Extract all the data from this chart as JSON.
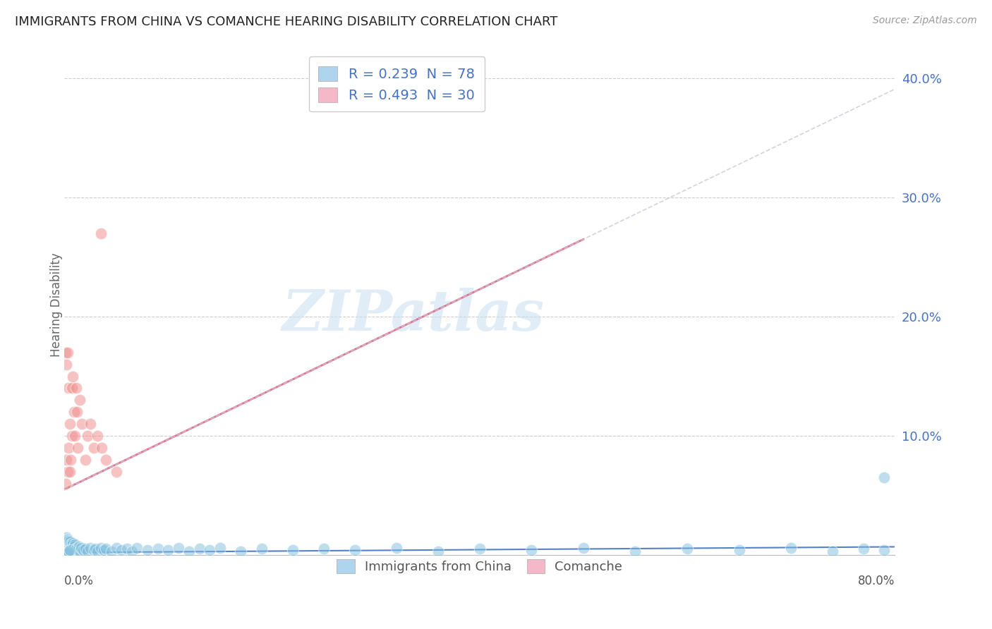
{
  "title": "IMMIGRANTS FROM CHINA VS COMANCHE HEARING DISABILITY CORRELATION CHART",
  "source": "Source: ZipAtlas.com",
  "ylabel": "Hearing Disability",
  "xlim": [
    0.0,
    0.8
  ],
  "ylim": [
    0.0,
    0.42
  ],
  "yticks": [
    0.0,
    0.1,
    0.2,
    0.3,
    0.4
  ],
  "ytick_labels": [
    "",
    "10.0%",
    "20.0%",
    "30.0%",
    "40.0%"
  ],
  "watermark": "ZIPatlas",
  "china_color": "#7fbfdf",
  "comanche_color": "#f09090",
  "china_legend_color": "#aed4ee",
  "comanche_legend_color": "#f4b8c8",
  "background_color": "#ffffff",
  "grid_color": "#cccccc",
  "china_R": 0.239,
  "china_N": 78,
  "comanche_R": 0.493,
  "comanche_N": 30,
  "china_x": [
    0.001,
    0.001,
    0.001,
    0.002,
    0.002,
    0.002,
    0.002,
    0.003,
    0.003,
    0.003,
    0.003,
    0.004,
    0.004,
    0.004,
    0.005,
    0.005,
    0.005,
    0.006,
    0.006,
    0.007,
    0.007,
    0.008,
    0.008,
    0.009,
    0.009,
    0.01,
    0.01,
    0.011,
    0.012,
    0.013,
    0.014,
    0.015,
    0.016,
    0.018,
    0.02,
    0.022,
    0.025,
    0.028,
    0.03,
    0.032,
    0.035,
    0.038,
    0.04,
    0.045,
    0.05,
    0.055,
    0.06,
    0.065,
    0.07,
    0.08,
    0.09,
    0.1,
    0.11,
    0.12,
    0.13,
    0.14,
    0.15,
    0.17,
    0.19,
    0.22,
    0.25,
    0.28,
    0.32,
    0.36,
    0.4,
    0.45,
    0.5,
    0.55,
    0.6,
    0.65,
    0.7,
    0.74,
    0.77,
    0.79,
    0.79,
    0.003,
    0.004,
    0.005
  ],
  "china_y": [
    0.005,
    0.008,
    0.012,
    0.004,
    0.007,
    0.01,
    0.015,
    0.003,
    0.006,
    0.009,
    0.013,
    0.005,
    0.008,
    0.012,
    0.004,
    0.007,
    0.011,
    0.005,
    0.009,
    0.004,
    0.008,
    0.005,
    0.01,
    0.003,
    0.007,
    0.004,
    0.009,
    0.005,
    0.006,
    0.004,
    0.007,
    0.003,
    0.006,
    0.004,
    0.005,
    0.003,
    0.006,
    0.004,
    0.005,
    0.003,
    0.006,
    0.004,
    0.005,
    0.003,
    0.006,
    0.004,
    0.005,
    0.003,
    0.006,
    0.004,
    0.005,
    0.004,
    0.006,
    0.003,
    0.005,
    0.004,
    0.006,
    0.003,
    0.005,
    0.004,
    0.005,
    0.004,
    0.006,
    0.003,
    0.005,
    0.004,
    0.006,
    0.003,
    0.005,
    0.004,
    0.006,
    0.003,
    0.005,
    0.065,
    0.004,
    0.002,
    0.003,
    0.004
  ],
  "comanche_x": [
    0.001,
    0.001,
    0.002,
    0.002,
    0.003,
    0.003,
    0.004,
    0.004,
    0.005,
    0.005,
    0.006,
    0.007,
    0.007,
    0.008,
    0.009,
    0.01,
    0.011,
    0.012,
    0.013,
    0.015,
    0.017,
    0.02,
    0.022,
    0.025,
    0.028,
    0.032,
    0.036,
    0.04,
    0.05,
    0.035
  ],
  "comanche_y": [
    0.17,
    0.06,
    0.16,
    0.08,
    0.17,
    0.07,
    0.14,
    0.09,
    0.07,
    0.11,
    0.08,
    0.14,
    0.1,
    0.15,
    0.12,
    0.1,
    0.14,
    0.12,
    0.09,
    0.13,
    0.11,
    0.08,
    0.1,
    0.11,
    0.09,
    0.1,
    0.09,
    0.08,
    0.07,
    0.27
  ]
}
